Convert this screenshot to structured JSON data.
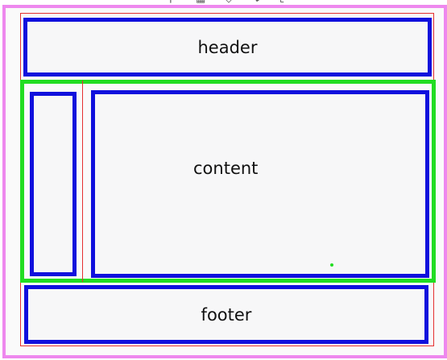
{
  "diagram": {
    "header_label": "header",
    "content_label": "content",
    "footer_label": "footer",
    "sidebar_label": ""
  },
  "colors": {
    "outer_border": "#ee88ee",
    "inner_border": "#e53030",
    "box_border": "#1010dd",
    "middle_border": "#22dd22",
    "box_fill": "#f7f7f8"
  },
  "toolbar": {
    "icons": [
      "search-icon",
      "trash-icon",
      "diamond-icon",
      "pointer-icon",
      "crop-icon",
      "brush-icon"
    ]
  }
}
